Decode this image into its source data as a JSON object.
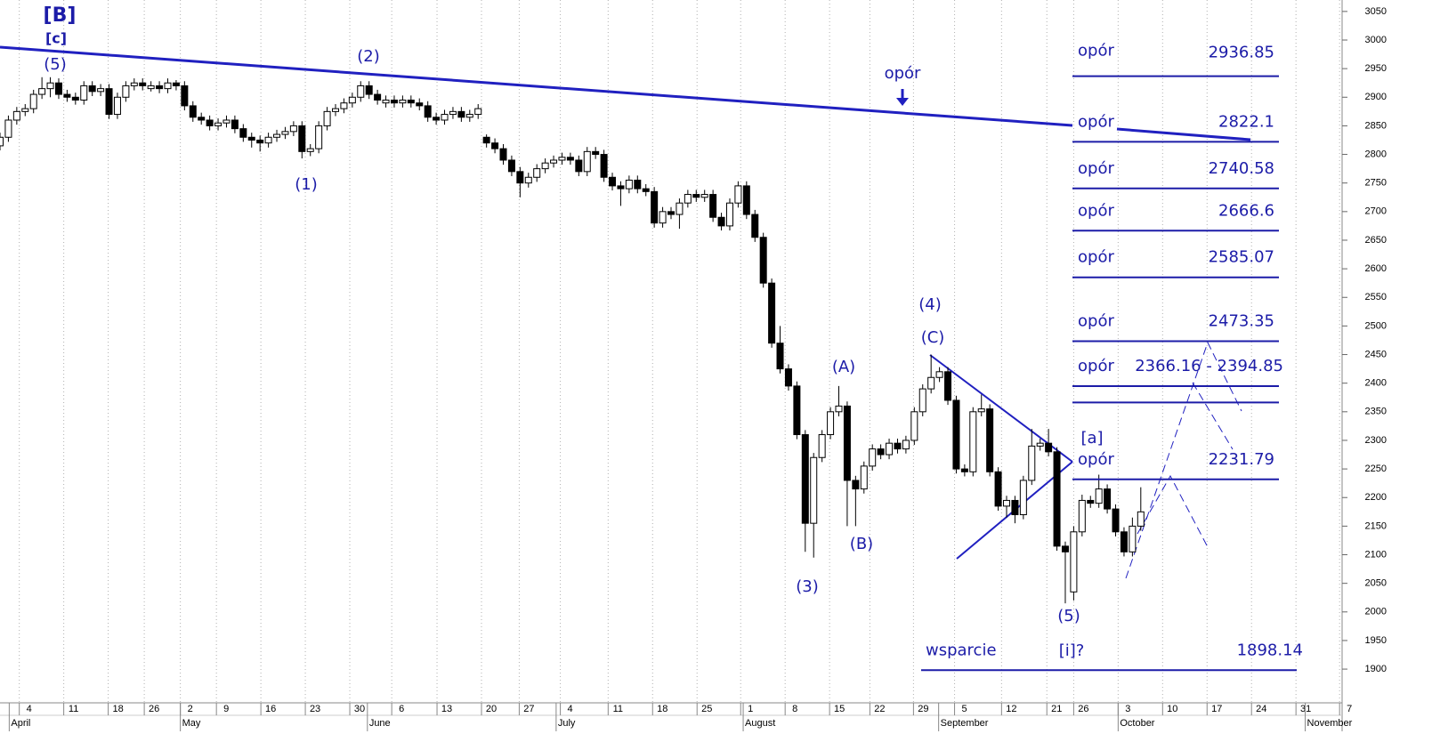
{
  "chart_data": {
    "type": "candlestick",
    "up_color": "#ffffff",
    "down_color": "#000000",
    "annotation_color": "#1c1ca8",
    "vertical_grid": true,
    "xlim": [
      0,
      160
    ],
    "ylim": [
      1841,
      3070
    ],
    "yticks": [
      1900,
      1950,
      2000,
      2050,
      2100,
      2150,
      2200,
      2250,
      2300,
      2350,
      2400,
      2450,
      2500,
      2550,
      2600,
      2650,
      2700,
      2750,
      2800,
      2850,
      2900,
      2950,
      3000,
      3050
    ],
    "xticks": [
      {
        "value": 2.3,
        "label": "4"
      },
      {
        "value": 7.6,
        "label": "11"
      },
      {
        "value": 12.9,
        "label": "18"
      },
      {
        "value": 17.2,
        "label": "26"
      },
      {
        "value": 21.5,
        "label": "2"
      },
      {
        "value": 25.8,
        "label": "9"
      },
      {
        "value": 31.1,
        "label": "16"
      },
      {
        "value": 36.4,
        "label": "23"
      },
      {
        "value": 41.7,
        "label": "30"
      },
      {
        "value": 46.7,
        "label": "6"
      },
      {
        "value": 52.1,
        "label": "13"
      },
      {
        "value": 57.4,
        "label": "20"
      },
      {
        "value": 61.9,
        "label": "27"
      },
      {
        "value": 66.8,
        "label": "4"
      },
      {
        "value": 72.5,
        "label": "11"
      },
      {
        "value": 77.8,
        "label": "18"
      },
      {
        "value": 83.1,
        "label": "25"
      },
      {
        "value": 88.3,
        "label": "1"
      },
      {
        "value": 93.6,
        "label": "8"
      },
      {
        "value": 98.9,
        "label": "15"
      },
      {
        "value": 103.7,
        "label": "22"
      },
      {
        "value": 108.9,
        "label": "29"
      },
      {
        "value": 113.8,
        "label": "5"
      },
      {
        "value": 119.4,
        "label": "12"
      },
      {
        "value": 124.8,
        "label": "21"
      },
      {
        "value": 128,
        "label": "26"
      },
      {
        "value": 133.3,
        "label": "3"
      },
      {
        "value": 138.6,
        "label": "10"
      },
      {
        "value": 143.9,
        "label": "17"
      },
      {
        "value": 149.2,
        "label": "24"
      },
      {
        "value": 154.5,
        "label": "31"
      },
      {
        "value": 159.7,
        "label": "7"
      }
    ],
    "months": [
      {
        "value": 1.1,
        "label": "April"
      },
      {
        "value": 21.5,
        "label": "May"
      },
      {
        "value": 43.8,
        "label": "June"
      },
      {
        "value": 66.3,
        "label": "July"
      },
      {
        "value": 88.6,
        "label": "August"
      },
      {
        "value": 111.9,
        "label": "September"
      },
      {
        "value": 133.3,
        "label": "October"
      },
      {
        "value": 155.6,
        "label": "November"
      }
    ],
    "x": [
      0,
      1,
      2,
      3,
      4,
      5,
      6,
      7,
      8,
      9,
      10,
      11,
      12,
      13,
      14,
      15,
      16,
      17,
      18,
      19,
      20,
      21,
      22,
      23,
      24,
      25,
      26,
      27,
      28,
      29,
      30,
      31,
      32,
      33,
      34,
      35,
      36,
      37,
      38,
      39,
      40,
      41,
      42,
      43,
      44,
      45,
      46,
      47,
      48,
      49,
      50,
      51,
      52,
      53,
      54,
      55,
      56,
      57,
      58,
      59,
      60,
      61,
      62,
      63,
      64,
      65,
      66,
      67,
      68,
      69,
      70,
      71,
      72,
      73,
      74,
      75,
      76,
      77,
      78,
      79,
      80,
      81,
      82,
      83,
      84,
      85,
      86,
      87,
      88,
      89,
      90,
      91,
      92,
      93,
      94,
      95,
      96,
      97,
      98,
      99,
      100,
      101,
      102,
      103,
      104,
      105,
      106,
      107,
      108,
      109,
      110,
      111,
      112,
      113,
      114,
      115,
      116,
      117,
      118,
      119,
      120,
      121,
      122,
      123,
      124,
      125,
      126,
      127,
      128,
      129,
      130,
      131,
      132,
      133,
      134,
      135,
      136
    ],
    "ohlc": [
      [
        2815,
        2838,
        2807,
        2830
      ],
      [
        2830,
        2868,
        2822,
        2860
      ],
      [
        2860,
        2883,
        2852,
        2875
      ],
      [
        2875,
        2888,
        2867,
        2880
      ],
      [
        2880,
        2913,
        2872,
        2905
      ],
      [
        2905,
        2935,
        2897,
        2915
      ],
      [
        2915,
        2935,
        2900,
        2925
      ],
      [
        2925,
        2933,
        2897,
        2905
      ],
      [
        2905,
        2913,
        2892,
        2900
      ],
      [
        2900,
        2908,
        2887,
        2895
      ],
      [
        2895,
        2928,
        2887,
        2920
      ],
      [
        2920,
        2928,
        2902,
        2910
      ],
      [
        2910,
        2923,
        2902,
        2915
      ],
      [
        2915,
        2923,
        2862,
        2870
      ],
      [
        2870,
        2908,
        2862,
        2900
      ],
      [
        2900,
        2928,
        2892,
        2920
      ],
      [
        2920,
        2933,
        2912,
        2925
      ],
      [
        2925,
        2933,
        2912,
        2920
      ],
      [
        2915,
        2928,
        2910,
        2920
      ],
      [
        2920,
        2928,
        2907,
        2915
      ],
      [
        2915,
        2933,
        2907,
        2925
      ],
      [
        2925,
        2930,
        2912,
        2920
      ],
      [
        2920,
        2928,
        2877,
        2885
      ],
      [
        2885,
        2893,
        2857,
        2865
      ],
      [
        2865,
        2873,
        2852,
        2860
      ],
      [
        2860,
        2868,
        2842,
        2850
      ],
      [
        2850,
        2863,
        2842,
        2855
      ],
      [
        2855,
        2868,
        2847,
        2860
      ],
      [
        2860,
        2868,
        2837,
        2845
      ],
      [
        2845,
        2853,
        2822,
        2830
      ],
      [
        2830,
        2838,
        2812,
        2825
      ],
      [
        2825,
        2833,
        2805,
        2820
      ],
      [
        2820,
        2838,
        2812,
        2830
      ],
      [
        2830,
        2843,
        2822,
        2835
      ],
      [
        2835,
        2848,
        2827,
        2840
      ],
      [
        2840,
        2858,
        2832,
        2850
      ],
      [
        2850,
        2858,
        2793,
        2805
      ],
      [
        2805,
        2818,
        2797,
        2810
      ],
      [
        2810,
        2858,
        2802,
        2850
      ],
      [
        2850,
        2883,
        2842,
        2875
      ],
      [
        2875,
        2888,
        2867,
        2880
      ],
      [
        2880,
        2898,
        2872,
        2890
      ],
      [
        2890,
        2908,
        2882,
        2900
      ],
      [
        2900,
        2928,
        2892,
        2920
      ],
      [
        2920,
        2928,
        2897,
        2905
      ],
      [
        2905,
        2913,
        2887,
        2895
      ],
      [
        2890,
        2903,
        2882,
        2895
      ],
      [
        2895,
        2903,
        2882,
        2890
      ],
      [
        2890,
        2903,
        2882,
        2895
      ],
      [
        2895,
        2903,
        2882,
        2890
      ],
      [
        2890,
        2898,
        2877,
        2885
      ],
      [
        2885,
        2893,
        2857,
        2865
      ],
      [
        2865,
        2873,
        2852,
        2860
      ],
      [
        2860,
        2878,
        2852,
        2870
      ],
      [
        2870,
        2883,
        2862,
        2875
      ],
      [
        2875,
        2883,
        2857,
        2865
      ],
      [
        2865,
        2878,
        2857,
        2870
      ],
      [
        2870,
        2888,
        2862,
        2880
      ],
      [
        2830,
        2835,
        2812,
        2820
      ],
      [
        2820,
        2828,
        2802,
        2810
      ],
      [
        2810,
        2818,
        2782,
        2790
      ],
      [
        2790,
        2798,
        2762,
        2770
      ],
      [
        2770,
        2778,
        2725,
        2750
      ],
      [
        2750,
        2768,
        2742,
        2760
      ],
      [
        2760,
        2783,
        2752,
        2775
      ],
      [
        2775,
        2793,
        2767,
        2785
      ],
      [
        2785,
        2798,
        2777,
        2790
      ],
      [
        2790,
        2803,
        2782,
        2795
      ],
      [
        2795,
        2803,
        2782,
        2790
      ],
      [
        2790,
        2798,
        2762,
        2770
      ],
      [
        2770,
        2813,
        2762,
        2805
      ],
      [
        2805,
        2813,
        2792,
        2800
      ],
      [
        2800,
        2808,
        2752,
        2760
      ],
      [
        2760,
        2768,
        2737,
        2745
      ],
      [
        2745,
        2753,
        2710,
        2740
      ],
      [
        2740,
        2763,
        2732,
        2755
      ],
      [
        2755,
        2763,
        2732,
        2740
      ],
      [
        2740,
        2748,
        2727,
        2735
      ],
      [
        2735,
        2743,
        2672,
        2680
      ],
      [
        2680,
        2708,
        2672,
        2700
      ],
      [
        2700,
        2708,
        2687,
        2695
      ],
      [
        2695,
        2723,
        2670,
        2715
      ],
      [
        2715,
        2738,
        2707,
        2730
      ],
      [
        2730,
        2738,
        2717,
        2725
      ],
      [
        2725,
        2738,
        2717,
        2730
      ],
      [
        2730,
        2738,
        2682,
        2690
      ],
      [
        2690,
        2698,
        2667,
        2675
      ],
      [
        2675,
        2723,
        2667,
        2715
      ],
      [
        2715,
        2753,
        2707,
        2745
      ],
      [
        2745,
        2753,
        2687,
        2695
      ],
      [
        2695,
        2703,
        2647,
        2655
      ],
      [
        2655,
        2663,
        2567,
        2575
      ],
      [
        2575,
        2583,
        2462,
        2470
      ],
      [
        2470,
        2500,
        2417,
        2425
      ],
      [
        2425,
        2433,
        2387,
        2395
      ],
      [
        2395,
        2403,
        2302,
        2310
      ],
      [
        2310,
        2318,
        2105,
        2155
      ],
      [
        2155,
        2278,
        2095,
        2270
      ],
      [
        2270,
        2318,
        2262,
        2310
      ],
      [
        2310,
        2358,
        2302,
        2350
      ],
      [
        2350,
        2395,
        2342,
        2360
      ],
      [
        2360,
        2368,
        2150,
        2230
      ],
      [
        2230,
        2238,
        2150,
        2215
      ],
      [
        2215,
        2263,
        2207,
        2255
      ],
      [
        2255,
        2293,
        2247,
        2285
      ],
      [
        2285,
        2293,
        2267,
        2275
      ],
      [
        2275,
        2303,
        2267,
        2295
      ],
      [
        2295,
        2303,
        2277,
        2285
      ],
      [
        2285,
        2308,
        2277,
        2300
      ],
      [
        2300,
        2358,
        2292,
        2350
      ],
      [
        2350,
        2398,
        2342,
        2390
      ],
      [
        2390,
        2450,
        2382,
        2410
      ],
      [
        2410,
        2428,
        2402,
        2420
      ],
      [
        2420,
        2428,
        2362,
        2370
      ],
      [
        2370,
        2378,
        2242,
        2250
      ],
      [
        2250,
        2258,
        2237,
        2245
      ],
      [
        2245,
        2358,
        2237,
        2350
      ],
      [
        2350,
        2380,
        2342,
        2355
      ],
      [
        2355,
        2363,
        2237,
        2245
      ],
      [
        2245,
        2253,
        2177,
        2185
      ],
      [
        2185,
        2203,
        2165,
        2195
      ],
      [
        2195,
        2203,
        2155,
        2170
      ],
      [
        2170,
        2238,
        2162,
        2230
      ],
      [
        2230,
        2320,
        2222,
        2290
      ],
      [
        2290,
        2303,
        2282,
        2295
      ],
      [
        2295,
        2320,
        2272,
        2280
      ],
      [
        2280,
        2288,
        2107,
        2115
      ],
      [
        2115,
        2123,
        2015,
        2105
      ],
      [
        2035,
        2150,
        2020,
        2140
      ],
      [
        2140,
        2205,
        2132,
        2195
      ],
      [
        2195,
        2203,
        2182,
        2190
      ],
      [
        2190,
        2240,
        2182,
        2215
      ],
      [
        2215,
        2223,
        2172,
        2180
      ],
      [
        2180,
        2188,
        2132,
        2140
      ],
      [
        2140,
        2148,
        2097,
        2105
      ],
      [
        2105,
        2165,
        2097,
        2150
      ],
      [
        2150,
        2218,
        2142,
        2175
      ]
    ],
    "levels": [
      {
        "label": "opór",
        "value": 2936.85
      },
      {
        "label": "opór",
        "value": 2822.1
      },
      {
        "label": "opór",
        "value": 2740.58
      },
      {
        "label": "opór",
        "value": 2666.6
      },
      {
        "label": "opór",
        "value": 2585.07
      },
      {
        "label": "opór",
        "value": 2473.35
      },
      {
        "label": "opór",
        "values": [
          2366.16,
          2394.85
        ],
        "value_label": "2366.16 - 2394.85"
      },
      {
        "label": "opór",
        "value": 2231.79
      },
      {
        "label": "wsparcie",
        "value": 1898.14
      }
    ],
    "annotations": [
      "[B]",
      "[c]",
      "(5)",
      "(2)",
      "(1)",
      "opór",
      "(4)",
      "(C)",
      "(A)",
      "(B)",
      "(3)",
      "[a]",
      "(5)",
      "[i]?"
    ]
  }
}
